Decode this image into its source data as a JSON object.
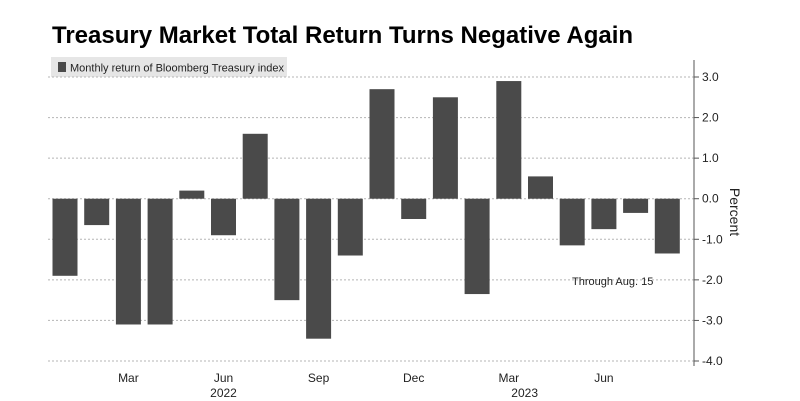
{
  "chart_data": {
    "type": "bar",
    "title": "Treasury Market Total Return Turns Negative Again",
    "legend": "Monthly return of Bloomberg Treasury index",
    "ylabel": "Percent",
    "ylim": [
      -4.0,
      3.0
    ],
    "yticks": [
      "3.0",
      "2.0",
      "1.0",
      "0.0",
      "-1.0",
      "-2.0",
      "-3.0",
      "-4.0"
    ],
    "ytick_values": [
      3,
      2,
      1,
      0,
      -1,
      -2,
      -3,
      -4
    ],
    "categories": [
      "Jan 2022",
      "Feb 2022",
      "Mar 2022",
      "Apr 2022",
      "May 2022",
      "Jun 2022",
      "Jul 2022",
      "Aug 2022",
      "Sep 2022",
      "Oct 2022",
      "Nov 2022",
      "Dec 2022",
      "Jan 2023",
      "Feb 2023",
      "Mar 2023",
      "Apr 2023",
      "May 2023",
      "Jun 2023",
      "Jul 2023",
      "Aug 2023"
    ],
    "values": [
      -1.9,
      -0.65,
      -3.1,
      -3.1,
      0.2,
      -0.9,
      1.6,
      -2.5,
      -3.45,
      -1.4,
      2.7,
      -0.5,
      2.5,
      -2.35,
      2.9,
      0.55,
      -1.15,
      -0.75,
      -0.35,
      -1.35
    ],
    "month_labels": [
      {
        "label": "Mar",
        "index": 2
      },
      {
        "label": "Jun",
        "index": 5
      },
      {
        "label": "Sep",
        "index": 8
      },
      {
        "label": "Dec",
        "index": 11
      },
      {
        "label": "Mar",
        "index": 14
      },
      {
        "label": "Jun",
        "index": 17
      }
    ],
    "year_labels": [
      {
        "label": "2022",
        "index": 5
      },
      {
        "label": "2023",
        "index": 14.5
      }
    ],
    "annotation": "Through Aug. 15",
    "bar_color": "#4a4a4a"
  }
}
